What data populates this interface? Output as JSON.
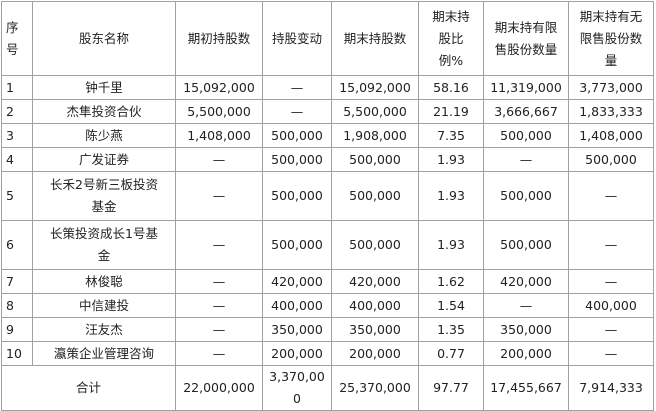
{
  "table": {
    "header": [
      "序号",
      "股东名称",
      "期初持股数",
      "持股变动",
      "期末持股数",
      "期末持股比例%",
      "期末持有限售股份数量",
      "期末持有无限售股份数量"
    ],
    "rows": [
      [
        "1",
        "钟千里",
        "15,092,000",
        "—",
        "15,092,000",
        "58.16",
        "11,319,000",
        "3,773,000"
      ],
      [
        "2",
        "杰隼投资合伙",
        "5,500,000",
        "—",
        "5,500,000",
        "21.19",
        "3,666,667",
        "1,833,333"
      ],
      [
        "3",
        "陈少燕",
        "1,408,000",
        "500,000",
        "1,908,000",
        "7.35",
        "500,000",
        "1,408,000"
      ],
      [
        "4",
        "广发证券",
        "—",
        "500,000",
        "500,000",
        "1.93",
        "—",
        "500,000"
      ],
      [
        "5",
        "长禾2号新三板投资基金",
        "—",
        "500,000",
        "500,000",
        "1.93",
        "500,000",
        "—"
      ],
      [
        "6",
        "长策投资成长1号基金",
        "—",
        "500,000",
        "500,000",
        "1.93",
        "500,000",
        "—"
      ],
      [
        "7",
        "林俊聪",
        "—",
        "420,000",
        "420,000",
        "1.62",
        "420,000",
        "—"
      ],
      [
        "8",
        "中信建投",
        "—",
        "400,000",
        "400,000",
        "1.54",
        "—",
        "400,000"
      ],
      [
        "9",
        "汪友杰",
        "—",
        "350,000",
        "350,000",
        "1.35",
        "350,000",
        "—"
      ],
      [
        "10",
        "瀛策企业管理咨询",
        "—",
        "200,000",
        "200,000",
        "0.77",
        "200,000",
        "—"
      ]
    ],
    "total": [
      "合计",
      "22,000,000",
      "3,370,000",
      "25,370,000",
      "97.77",
      "17,455,667",
      "7,914,333"
    ]
  }
}
